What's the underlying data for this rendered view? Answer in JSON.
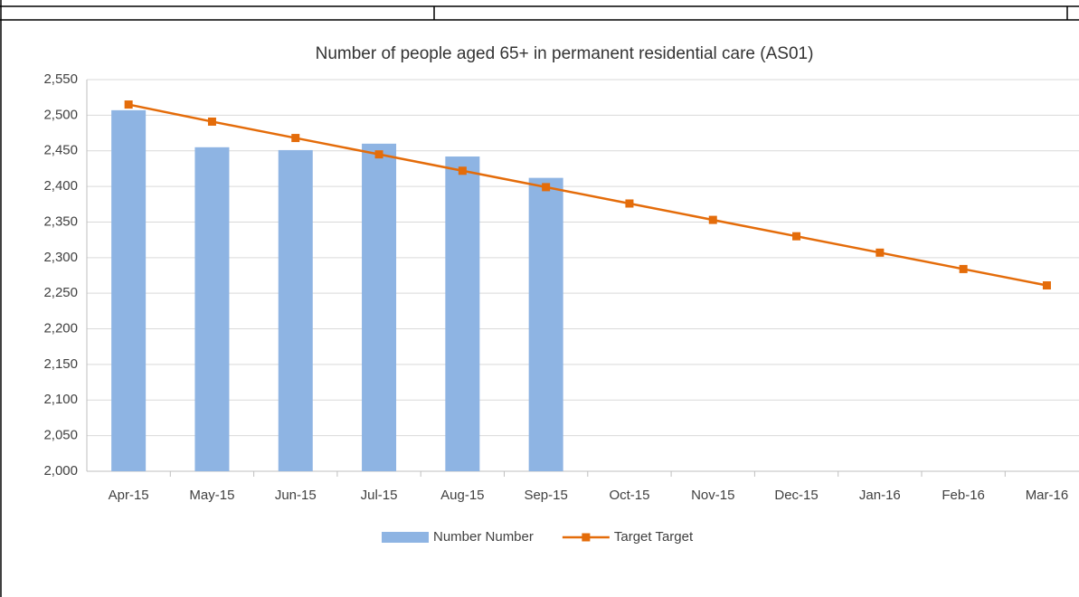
{
  "chart_data": {
    "type": "bar_line",
    "title": "Number of people aged 65+ in permanent residential care (AS01)",
    "categories": [
      "Apr-15",
      "May-15",
      "Jun-15",
      "Jul-15",
      "Aug-15",
      "Sep-15",
      "Oct-15",
      "Nov-15",
      "Dec-15",
      "Jan-16",
      "Feb-16",
      "Mar-16"
    ],
    "series": [
      {
        "name": "Number Number",
        "type": "bar",
        "color": "#8eb4e3",
        "values": [
          2507,
          2455,
          2451,
          2460,
          2442,
          2412,
          null,
          null,
          null,
          null,
          null,
          null
        ]
      },
      {
        "name": "Target Target",
        "type": "line",
        "color": "#e46c0a",
        "values": [
          2515,
          2491,
          2468,
          2445,
          2422,
          2399,
          2376,
          2353,
          2330,
          2307,
          2284,
          2261
        ]
      }
    ],
    "ylim": [
      2000,
      2550
    ],
    "yticks": [
      {
        "value": 2000,
        "label": "2,000"
      },
      {
        "value": 2050,
        "label": "2,050"
      },
      {
        "value": 2100,
        "label": "2,100"
      },
      {
        "value": 2150,
        "label": "2,150"
      },
      {
        "value": 2200,
        "label": "2,200"
      },
      {
        "value": 2250,
        "label": "2,250"
      },
      {
        "value": 2300,
        "label": "2,300"
      },
      {
        "value": 2350,
        "label": "2,350"
      },
      {
        "value": 2400,
        "label": "2,400"
      },
      {
        "value": 2450,
        "label": "2,450"
      },
      {
        "value": 2500,
        "label": "2,500"
      },
      {
        "value": 2550,
        "label": "2,550"
      }
    ],
    "grid": true,
    "legend": "bottom"
  }
}
